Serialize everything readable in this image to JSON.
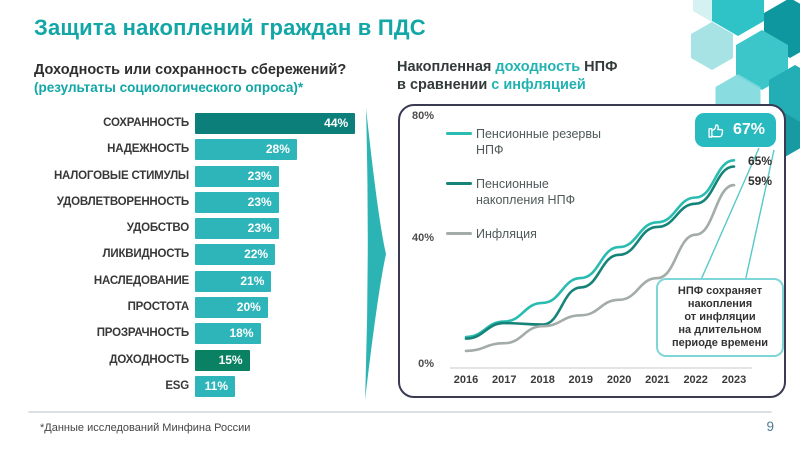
{
  "slide": {
    "title": "Защита накоплений граждан в ПДС",
    "footnote": "*Данные исследований Минфина России",
    "page_number": "9",
    "accent_color": "#12a6a6"
  },
  "left_chart": {
    "title": "Доходность или сохранность сбережений?",
    "subtitle": "(результаты социологического опроса)*"
  },
  "right_chart": {
    "title_part1": "Накопленная ",
    "title_part2": "доходность",
    "title_part3": " НПФ",
    "title_line2_part1": "в сравнении ",
    "title_line2_part2": "с инфляцией",
    "legend_labels": [
      "Пенсионные резервы\nНПФ",
      "Пенсионные\nнакопления НПФ",
      "Инфляция"
    ],
    "callout": "НПФ сохраняет\nнакопления\nот инфляции\nна длительном\nпериоде времени",
    "badge_icon": "thumbs-up-icon",
    "badge_color": "#29bac0"
  },
  "chart_data": [
    {
      "type": "bar",
      "orientation": "horizontal",
      "title": "Доходность или сохранность сбережений? (результаты социологического опроса)*",
      "categories": [
        "СОХРАННОСТЬ",
        "НАДЕЖНОСТЬ",
        "НАЛОГОВЫЕ СТИМУЛЫ",
        "УДОВЛЕТВОРЕННОСТЬ",
        "УДОБСТВО",
        "ЛИКВИДНОСТЬ",
        "НАСЛЕДОВАНИЕ",
        "ПРОСТОТА",
        "ПРОЗРАЧНОСТЬ",
        "ДОХОДНОСТЬ",
        "ESG"
      ],
      "values": [
        44,
        28,
        23,
        23,
        23,
        22,
        21,
        20,
        18,
        15,
        11
      ],
      "unit": "%",
      "xlim": [
        0,
        44
      ],
      "bar_colors": [
        "#0d7f7b",
        "#2db5ba",
        "#2db5ba",
        "#2db5ba",
        "#2db5ba",
        "#2db5ba",
        "#2db5ba",
        "#2db5ba",
        "#2db5ba",
        "#0a8163",
        "#2db5ba"
      ]
    },
    {
      "type": "line",
      "title": "Накопленная доходность НПФ в сравнении с инфляцией",
      "x": [
        "2016",
        "2017",
        "2018",
        "2019",
        "2020",
        "2021",
        "2022",
        "2023"
      ],
      "ylim": [
        0,
        80
      ],
      "y_ticks": [
        "80%",
        "40%",
        "0%"
      ],
      "legend_position": "top-left",
      "grid": false,
      "annotation": "НПФ сохраняет накопления от инфляции на длительном периоде времени",
      "series": [
        {
          "name": "Пенсионные резервы НПФ",
          "color": "#2abcb0",
          "values": [
            10,
            15,
            21,
            29,
            39,
            47,
            55,
            67
          ],
          "end_label": "67%"
        },
        {
          "name": "Пенсионные накопления НПФ",
          "color": "#168378",
          "values": [
            9.5,
            14.5,
            14,
            26,
            36.5,
            45.5,
            53,
            65
          ],
          "end_label": "65%"
        },
        {
          "name": "Инфляция",
          "color": "#a3aca8",
          "values": [
            5.5,
            8,
            13.5,
            17,
            22,
            29,
            43,
            59
          ],
          "end_label": "59%"
        }
      ]
    }
  ]
}
